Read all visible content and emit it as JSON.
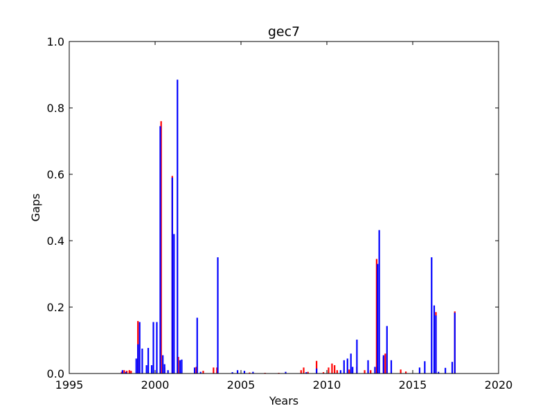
{
  "chart_data": {
    "type": "bar",
    "title": "gec7",
    "xlabel": "Years",
    "ylabel": "Gaps",
    "xlim": [
      1995,
      2020
    ],
    "ylim": [
      0,
      1.0
    ],
    "x_ticks": [
      "1995",
      "2000",
      "2005",
      "2010",
      "2015",
      "2020"
    ],
    "y_ticks": [
      "0.0",
      "0.2",
      "0.4",
      "0.6",
      "0.8",
      "1.0"
    ],
    "grid": false,
    "legend": "none",
    "colors": {
      "red": "#ff0000",
      "blue": "#0000ff"
    },
    "series": [
      {
        "color": "red",
        "x": [
          1998.05,
          1998.2,
          1998.35,
          1998.5,
          1998.6,
          1999.0,
          2000.35,
          2000.55,
          2001.0,
          2001.35,
          2002.4,
          2002.8,
          2003.4,
          2003.6,
          2005.5,
          2006.4,
          2007.2,
          2008.5,
          2008.65,
          2008.9,
          2009.4,
          2009.8,
          2010.1,
          2010.3,
          2010.45,
          2010.6,
          2011.3,
          2011.75,
          2012.2,
          2012.55,
          2012.9,
          2013.3,
          2013.4,
          2014.3,
          2014.6,
          2016.35,
          2017.45
        ],
        "values": [
          0.005,
          0.01,
          0.008,
          0.01,
          0.008,
          0.158,
          0.76,
          0.018,
          0.595,
          0.05,
          0.02,
          0.008,
          0.018,
          0.018,
          0.003,
          0.002,
          0.002,
          0.01,
          0.018,
          0.005,
          0.038,
          0.004,
          0.018,
          0.03,
          0.025,
          0.01,
          0.012,
          0.02,
          0.01,
          0.01,
          0.345,
          0.05,
          0.06,
          0.012,
          0.006,
          0.185,
          0.187
        ]
      },
      {
        "color": "blue",
        "x": [
          1998.1,
          1998.3,
          1998.9,
          1999.0,
          1999.1,
          1999.25,
          1999.5,
          1999.6,
          1999.8,
          1999.9,
          2000.1,
          2000.3,
          2000.45,
          2000.55,
          2000.75,
          2001.0,
          2001.1,
          2001.3,
          2001.45,
          2001.55,
          2002.3,
          2002.45,
          2002.65,
          2003.65,
          2004.5,
          2004.8,
          2005.2,
          2005.7,
          2007.6,
          2008.8,
          2009.4,
          2010.8,
          2011.0,
          2011.2,
          2011.4,
          2011.5,
          2011.75,
          2012.4,
          2012.8,
          2012.95,
          2013.05,
          2013.3,
          2013.5,
          2013.75,
          2015.4,
          2015.7,
          2016.1,
          2016.25,
          2016.35,
          2016.5,
          2016.9,
          2017.3,
          2017.45
        ],
        "values": [
          0.01,
          0.005,
          0.045,
          0.088,
          0.155,
          0.075,
          0.025,
          0.077,
          0.025,
          0.155,
          0.155,
          0.745,
          0.055,
          0.028,
          0.01,
          0.59,
          0.42,
          0.885,
          0.04,
          0.042,
          0.018,
          0.168,
          0.005,
          0.35,
          0.004,
          0.01,
          0.008,
          0.005,
          0.005,
          0.004,
          0.015,
          0.01,
          0.04,
          0.045,
          0.06,
          0.02,
          0.102,
          0.04,
          0.02,
          0.33,
          0.432,
          0.055,
          0.143,
          0.04,
          0.018,
          0.037,
          0.35,
          0.205,
          0.175,
          0.005,
          0.017,
          0.035,
          0.183
        ]
      }
    ]
  }
}
